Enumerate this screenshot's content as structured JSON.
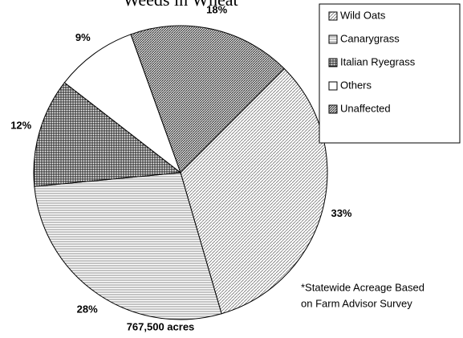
{
  "chart_data": {
    "type": "pie",
    "title": "Weeds in Wheat",
    "categories": [
      "Wild Oats",
      "Canarygrass",
      "Italian Ryegrass",
      "Others",
      "Unaffected"
    ],
    "values": [
      33,
      28,
      12,
      9,
      18
    ],
    "value_labels": [
      "33%",
      "28%",
      "12%",
      "9%",
      "18%"
    ],
    "annotations": [
      "767,500 acres",
      "*Statewide Acreage Based",
      "on Farm Advisor Survey"
    ]
  }
}
